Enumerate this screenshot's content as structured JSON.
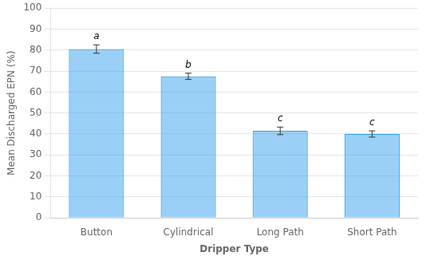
{
  "chart_data": {
    "type": "bar",
    "categories": [
      "Button",
      "Cylindrical",
      "Long Path",
      "Short Path"
    ],
    "values": [
      80.5,
      67.5,
      41.5,
      40.0
    ],
    "errors": [
      2.0,
      1.5,
      1.8,
      1.5
    ],
    "annotations": [
      "a",
      "b",
      "c",
      "c"
    ],
    "xlabel": "Dripper Type",
    "ylabel": "Mean Discharged EPN (%)",
    "ylim": [
      0,
      100
    ],
    "yticks": [
      0,
      10,
      20,
      30,
      40,
      50,
      60,
      70,
      80,
      90,
      100
    ],
    "grid": true
  }
}
